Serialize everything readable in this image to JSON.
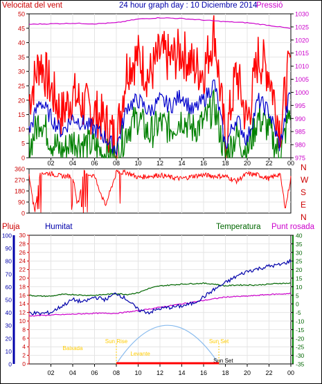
{
  "header": {
    "left": "Velocitat del vent",
    "center": "24 hour graph day : 10 Diciembre 2014",
    "right": "Pressió"
  },
  "bottom_header": {
    "rain": "Pluja",
    "humidity": "Humitat",
    "temperature": "Temperatura",
    "dewpoint": "Punt rosada"
  },
  "colors": {
    "wind_speed": "#ff0000",
    "wind_avg": "#0000cc",
    "wind_min": "#008000",
    "pressure": "#cc00cc",
    "direction": "#ff0000",
    "humidity": "#0000aa",
    "temperature": "#006600",
    "dewpoint": "#cc00cc",
    "sun_arc": "#88bbee",
    "sun_labels": "#ffcc00"
  },
  "chart_data": [
    {
      "type": "line",
      "x_ticks": [
        "02",
        "04",
        "06",
        "08",
        "10",
        "12",
        "14",
        "16",
        "18",
        "20",
        "22",
        "00"
      ],
      "y_left": {
        "ticks": [
          0,
          5,
          10,
          15,
          20,
          25,
          30,
          35,
          40,
          45,
          50
        ],
        "range": [
          0,
          50
        ]
      },
      "y_right": {
        "ticks": [
          975,
          980,
          985,
          990,
          995,
          1000,
          1005,
          1010,
          1015,
          1020,
          1025,
          1030
        ],
        "range": [
          975,
          1030
        ]
      },
      "series": [
        {
          "key": "pressure",
          "axis": "right",
          "hours": [
            0,
            2,
            4,
            6,
            8,
            10,
            12,
            14,
            16,
            18,
            20,
            22,
            24
          ],
          "values": [
            1026.0,
            1026.2,
            1026.4,
            1026.2,
            1026.6,
            1028.0,
            1028.5,
            1028.2,
            1027.6,
            1027.0,
            1026.6,
            1025.6,
            1024.4
          ]
        },
        {
          "key": "wind_speed",
          "axis": "left",
          "hours": [
            0,
            1,
            2,
            3,
            4,
            5,
            6,
            7,
            8,
            9,
            10,
            11,
            12,
            13,
            14,
            15,
            16,
            17,
            18,
            19,
            20,
            21,
            22,
            23,
            24
          ],
          "values": [
            20,
            34,
            24,
            15,
            22,
            18,
            16,
            12,
            6,
            32,
            35,
            28,
            36,
            34,
            37,
            32,
            30,
            44,
            5,
            30,
            12,
            35,
            30,
            10,
            35
          ]
        },
        {
          "key": "wind_avg",
          "axis": "left",
          "hours": [
            0,
            1,
            2,
            3,
            4,
            5,
            6,
            7,
            8,
            9,
            10,
            11,
            12,
            13,
            14,
            15,
            16,
            17,
            18,
            19,
            20,
            21,
            22,
            23,
            24
          ],
          "values": [
            9,
            20,
            14,
            9,
            14,
            12,
            10,
            7,
            3,
            18,
            20,
            16,
            20,
            18,
            22,
            16,
            20,
            26,
            4,
            14,
            6,
            20,
            16,
            4,
            24
          ]
        },
        {
          "key": "wind_min",
          "axis": "left",
          "hours": [
            0,
            1,
            2,
            3,
            4,
            5,
            6,
            7,
            8,
            9,
            10,
            11,
            12,
            13,
            14,
            15,
            16,
            17,
            18,
            19,
            20,
            21,
            22,
            23,
            24
          ],
          "values": [
            3,
            14,
            6,
            2,
            6,
            5,
            4,
            1,
            0,
            10,
            14,
            8,
            12,
            10,
            14,
            10,
            12,
            18,
            0,
            8,
            2,
            14,
            10,
            0,
            18
          ]
        }
      ]
    },
    {
      "type": "line",
      "y_ticks": [
        0,
        90,
        180,
        270,
        360
      ],
      "y_right_labels": [
        "N",
        "W",
        "S",
        "E",
        "N"
      ],
      "series": [
        {
          "key": "direction",
          "hours": [
            0,
            0.5,
            1,
            2,
            3,
            4,
            4.5,
            5,
            6,
            7,
            8,
            9,
            10,
            11,
            12,
            13,
            14,
            15,
            16,
            17,
            18,
            19,
            20,
            21,
            22,
            23,
            23.5,
            24
          ],
          "values": [
            300,
            0,
            330,
            320,
            300,
            300,
            50,
            330,
            300,
            60,
            330,
            330,
            290,
            300,
            310,
            290,
            280,
            300,
            310,
            300,
            300,
            260,
            320,
            310,
            280,
            320,
            40,
            290
          ]
        }
      ]
    },
    {
      "type": "line",
      "y_left_outer": {
        "ticks": [
          0,
          10,
          20,
          30,
          40,
          50,
          60,
          70,
          80,
          90,
          100
        ],
        "range": [
          0,
          100
        ]
      },
      "y_left_inner": {
        "ticks": [
          0,
          2,
          4,
          6,
          8,
          10,
          12,
          14,
          16,
          18,
          20,
          22,
          24,
          26,
          28,
          30
        ],
        "range": [
          0,
          30
        ]
      },
      "y_right": {
        "ticks": [
          -35,
          -30,
          -25,
          -20,
          -15,
          -10,
          -5,
          0,
          5,
          10,
          15,
          20,
          25,
          30,
          35,
          40
        ],
        "range": [
          -35,
          40
        ]
      },
      "series": [
        {
          "key": "humidity",
          "axis": "outer",
          "hours": [
            0,
            1,
            2,
            3,
            4,
            5,
            6,
            7,
            8,
            9,
            10,
            11,
            12,
            13,
            14,
            15,
            16,
            17,
            18,
            19,
            20,
            21,
            22,
            23,
            24
          ],
          "values": [
            40,
            39,
            40,
            45,
            50,
            48,
            52,
            50,
            55,
            50,
            42,
            40,
            43,
            44,
            45,
            47,
            52,
            58,
            63,
            68,
            72,
            74,
            76,
            77,
            80
          ]
        },
        {
          "key": "temperature",
          "axis": "right",
          "hours": [
            0,
            1,
            2,
            3,
            4,
            5,
            6,
            7,
            8,
            9,
            10,
            11,
            12,
            13,
            14,
            15,
            16,
            17,
            18,
            19,
            20,
            21,
            22,
            23,
            24
          ],
          "values": [
            5.0,
            4.5,
            4.5,
            5.5,
            5.5,
            5.0,
            5.0,
            5.5,
            6.0,
            5.5,
            6.5,
            9.0,
            10.5,
            11.0,
            11.5,
            11.8,
            12.0,
            11.5,
            10.5,
            11.0,
            11.0,
            11.0,
            11.5,
            12.0,
            12.0
          ]
        },
        {
          "key": "dewpoint",
          "axis": "right",
          "hours": [
            0,
            2,
            4,
            6,
            8,
            10,
            12,
            14,
            16,
            18,
            20,
            22,
            24
          ],
          "values": [
            -7,
            -6.5,
            -6,
            -5.5,
            -5.5,
            -4,
            -2,
            0,
            2,
            4,
            4.5,
            5.5,
            6
          ]
        },
        {
          "key": "rain",
          "axis": "inner",
          "hours": [
            0,
            24
          ],
          "values": [
            0,
            0
          ]
        }
      ],
      "sun": {
        "rise_hour": 8.0,
        "set_hour": 17.4,
        "peak_hour": 12.7,
        "peak_value": 9,
        "labels": [
          "Sun Rise",
          "Sun Set",
          "Baixada",
          "Levante",
          "Sun Set"
        ]
      }
    }
  ]
}
